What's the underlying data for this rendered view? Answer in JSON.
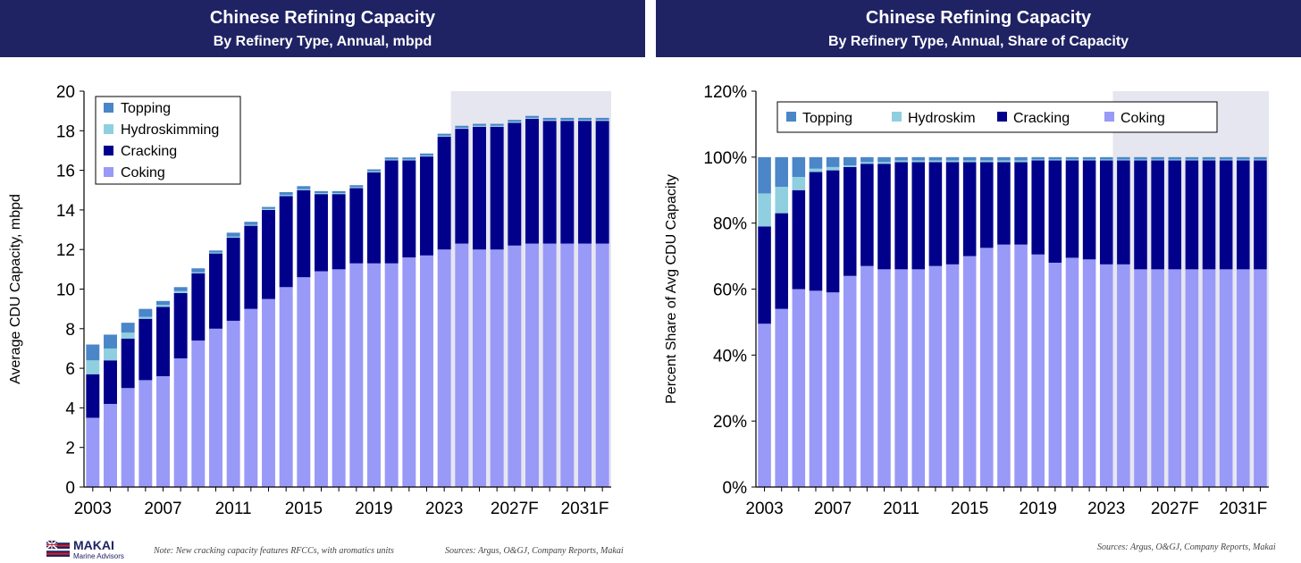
{
  "left_panel": {
    "title": "Chinese Refining Capacity",
    "subtitle": "By Refinery Type, Annual, mbpd",
    "note": "Note: New cracking capacity features RFCCs, with aromatics units",
    "sources": "Sources: Argus, O&GJ, Company Reports, Makai"
  },
  "right_panel": {
    "title": "Chinese Refining Capacity",
    "subtitle": "By Refinery Type, Annual, Share of Capacity",
    "sources": "Sources: Argus, O&GJ, Company Reports, Makai"
  },
  "logo": {
    "name": "MAKAI",
    "tagline": "Marine Advisors"
  },
  "colors": {
    "header_bg": "#1f2263",
    "coking": "#9999f7",
    "cracking": "#00008b",
    "hydroskimming": "#8fcfe0",
    "topping": "#4a86c8",
    "forecast_shade": "#e6e6f0"
  },
  "chart_data": [
    {
      "type": "bar",
      "stacked": true,
      "ylabel": "Average CDU Capacity, mbpd",
      "ylim": [
        0,
        20
      ],
      "yticks": [
        "0",
        "2",
        "4",
        "6",
        "8",
        "10",
        "12",
        "14",
        "16",
        "18",
        "20"
      ],
      "x": [
        2003,
        2004,
        2005,
        2006,
        2007,
        2008,
        2009,
        2010,
        2011,
        2012,
        2013,
        2014,
        2015,
        2016,
        2017,
        2018,
        2019,
        2020,
        2021,
        2022,
        2023,
        2024,
        2025,
        2026,
        2027,
        2028,
        2029,
        2030,
        2031,
        2032
      ],
      "xtick_labels": [
        "2003",
        "2007",
        "2011",
        "2015",
        "2019",
        "2023",
        "2027F",
        "2031F"
      ],
      "forecast_shaded_from": 2024,
      "legend": {
        "placement": "top-left",
        "entries": [
          "Topping",
          "Hydroskimming",
          "Cracking",
          "Coking"
        ]
      },
      "series": [
        {
          "name": "Coking",
          "values": [
            3.5,
            4.2,
            5.0,
            5.4,
            5.6,
            6.5,
            7.4,
            8.0,
            8.4,
            9.0,
            9.5,
            10.1,
            10.6,
            10.9,
            11.0,
            11.3,
            11.3,
            11.3,
            11.6,
            11.7,
            12.0,
            12.3,
            12.0,
            12.0,
            12.2,
            12.3,
            12.3,
            12.3,
            12.3,
            12.3
          ]
        },
        {
          "name": "Cracking",
          "values": [
            2.2,
            2.2,
            2.5,
            3.1,
            3.5,
            3.3,
            3.4,
            3.8,
            4.2,
            4.2,
            4.5,
            4.6,
            4.4,
            3.9,
            3.8,
            3.8,
            4.6,
            5.2,
            4.9,
            5.0,
            5.7,
            5.8,
            6.2,
            6.2,
            6.2,
            6.3,
            6.2,
            6.2,
            6.2,
            6.2
          ]
        },
        {
          "name": "Hydroskimming",
          "values": [
            0.7,
            0.6,
            0.3,
            0.1,
            0.1,
            0.1,
            0.05,
            0.05,
            0.05,
            0.05,
            0.05,
            0.05,
            0.05,
            0.05,
            0.05,
            0.05,
            0.05,
            0.05,
            0.05,
            0.05,
            0.05,
            0.05,
            0.05,
            0.05,
            0.05,
            0.05,
            0.05,
            0.05,
            0.05,
            0.05
          ]
        },
        {
          "name": "Topping",
          "values": [
            0.8,
            0.7,
            0.5,
            0.4,
            0.2,
            0.2,
            0.2,
            0.1,
            0.2,
            0.15,
            0.1,
            0.15,
            0.15,
            0.1,
            0.1,
            0.1,
            0.1,
            0.1,
            0.1,
            0.1,
            0.1,
            0.1,
            0.1,
            0.1,
            0.1,
            0.1,
            0.1,
            0.1,
            0.1,
            0.1
          ]
        }
      ]
    },
    {
      "type": "bar",
      "stacked": true,
      "ylabel": "Percent Share of Avg CDU Capacity",
      "ylim": [
        0,
        120
      ],
      "yticks": [
        "0%",
        "20%",
        "40%",
        "60%",
        "80%",
        "100%",
        "120%"
      ],
      "x": [
        2003,
        2004,
        2005,
        2006,
        2007,
        2008,
        2009,
        2010,
        2011,
        2012,
        2013,
        2014,
        2015,
        2016,
        2017,
        2018,
        2019,
        2020,
        2021,
        2022,
        2023,
        2024,
        2025,
        2026,
        2027,
        2028,
        2029,
        2030,
        2031,
        2032
      ],
      "xtick_labels": [
        "2003",
        "2007",
        "2011",
        "2015",
        "2019",
        "2023",
        "2027F",
        "2031F"
      ],
      "forecast_shaded_from": 2024,
      "legend": {
        "placement": "top",
        "entries": [
          "Topping",
          "Hydroskim",
          "Cracking",
          "Coking"
        ]
      },
      "series": [
        {
          "name": "Coking",
          "values": [
            49.5,
            54,
            60,
            59.5,
            59,
            64,
            67,
            66,
            66,
            66,
            67,
            67.5,
            70,
            72.5,
            73.5,
            73.5,
            70.5,
            68,
            69.5,
            69,
            67.5,
            67.5,
            66,
            66,
            66,
            66,
            66,
            66,
            66,
            66
          ]
        },
        {
          "name": "Cracking",
          "values": [
            29.5,
            29,
            30,
            36,
            37,
            33,
            31,
            32,
            32.5,
            32.5,
            31.5,
            31,
            28.5,
            26,
            25,
            25,
            28.5,
            31,
            29.5,
            30,
            31.5,
            31.5,
            33,
            33,
            33,
            33,
            33,
            33,
            33,
            33
          ]
        },
        {
          "name": "Hydroskim",
          "values": [
            10,
            8,
            4,
            1,
            1,
            0.5,
            0.5,
            0.5,
            0.5,
            0.5,
            0.5,
            0.5,
            0.5,
            0.5,
            0.5,
            0.5,
            0.3,
            0.3,
            0.3,
            0.3,
            0.3,
            0.3,
            0.3,
            0.3,
            0.3,
            0.3,
            0.3,
            0.3,
            0.3,
            0.3
          ]
        },
        {
          "name": "Topping",
          "values": [
            11,
            9,
            6,
            3.5,
            3,
            2.5,
            1.5,
            1.5,
            1,
            1,
            1,
            1,
            1,
            1,
            1,
            1,
            0.7,
            0.7,
            0.7,
            0.7,
            0.7,
            0.7,
            0.7,
            0.7,
            0.7,
            0.7,
            0.7,
            0.7,
            0.7,
            0.7
          ]
        }
      ]
    }
  ]
}
